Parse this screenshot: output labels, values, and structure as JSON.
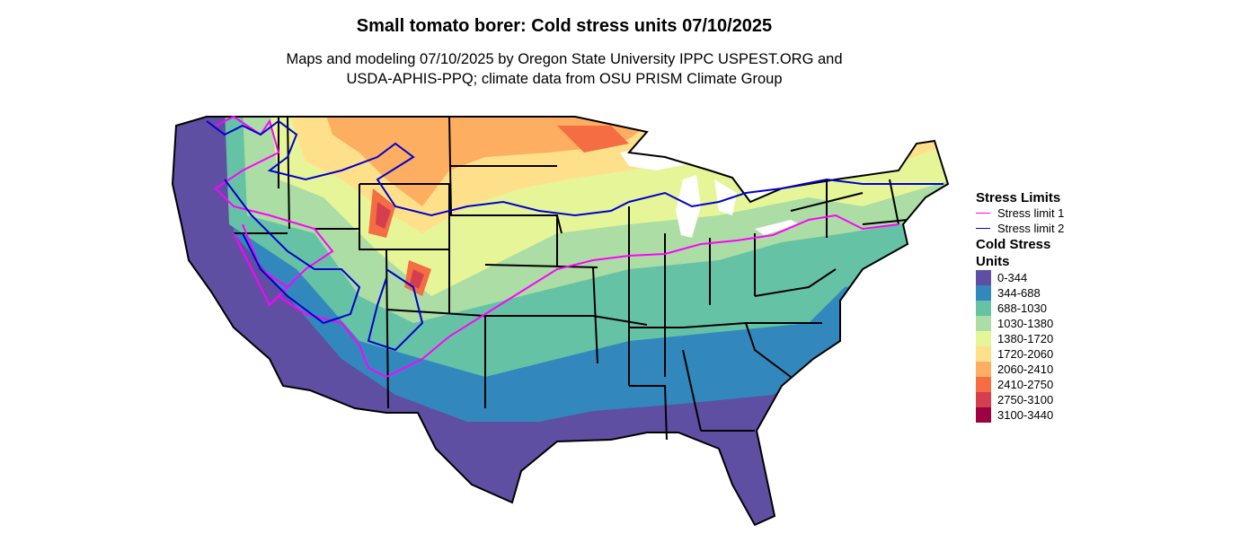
{
  "title": "Small tomato borer: Cold stress units 07/10/2025",
  "subtitle_line1": "Maps and modeling 07/10/2025 by Oregon State University IPPC USPEST.ORG and",
  "subtitle_line2": "USDA-APHIS-PPQ; climate data from OSU PRISM Climate Group",
  "legend": {
    "limits_title": "Stress Limits",
    "limits": [
      {
        "label": "Stress limit 1",
        "color": "#ff00ff"
      },
      {
        "label": "Stress limit 2",
        "color": "#0000cc"
      }
    ],
    "units_title_1": "Cold Stress",
    "units_title_2": "Units",
    "units": [
      {
        "label": "0-344",
        "color": "#5e4fa2"
      },
      {
        "label": "344-688",
        "color": "#3288bd"
      },
      {
        "label": "688-1030",
        "color": "#66c2a5"
      },
      {
        "label": "1030-1380",
        "color": "#abdda4"
      },
      {
        "label": "1380-1720",
        "color": "#e6f598"
      },
      {
        "label": "1720-2060",
        "color": "#fee08b"
      },
      {
        "label": "2060-2410",
        "color": "#fdae61"
      },
      {
        "label": "2410-2750",
        "color": "#f46d43"
      },
      {
        "label": "2750-3100",
        "color": "#d53e4f"
      },
      {
        "label": "3100-3440",
        "color": "#9e0142"
      }
    ]
  }
}
